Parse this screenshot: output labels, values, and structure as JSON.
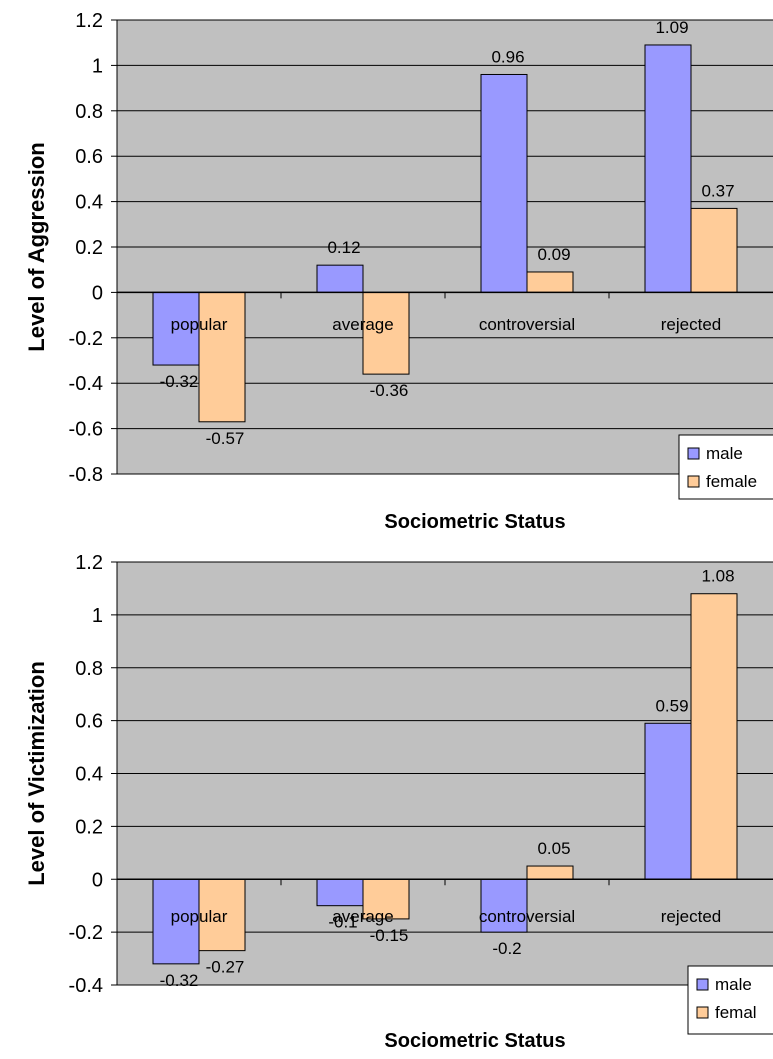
{
  "colors": {
    "plot_bg": "#C0C0C0",
    "male": "#9999FF",
    "female": "#FFCC99",
    "bar_stroke": "#000000",
    "grid": "#000000"
  },
  "chart_data": [
    {
      "type": "bar",
      "categories": [
        "popular",
        "average",
        "controversial",
        "rejected"
      ],
      "series": [
        {
          "name": "male",
          "values": [
            -0.32,
            0.12,
            0.96,
            1.09
          ],
          "labels": [
            "-0.32",
            "0.12",
            "0.96",
            "1.09"
          ]
        },
        {
          "name": "female",
          "values": [
            -0.57,
            -0.36,
            0.09,
            0.37
          ],
          "labels": [
            "-0.57",
            "-0.36",
            "0.09",
            "0.37"
          ]
        }
      ],
      "yticks": [
        "-0.8",
        "-0.6",
        "-0.4",
        "-0.2",
        "0",
        "0.2",
        "0.4",
        "0.6",
        "0.8",
        "1",
        "1.2"
      ],
      "ylim": [
        -0.8,
        1.2
      ],
      "ylabel": "Level of Aggression",
      "xlabel": "Sociometric Status",
      "grid": true,
      "legend": "bottom-right"
    },
    {
      "type": "bar",
      "categories": [
        "popular",
        "average",
        "controversial",
        "rejected"
      ],
      "series": [
        {
          "name": "male",
          "values": [
            -0.32,
            -0.1,
            -0.2,
            0.59
          ],
          "labels": [
            "-0.32",
            "-0.1",
            "-0.2",
            "0.59"
          ]
        },
        {
          "name": "female",
          "values": [
            -0.27,
            -0.15,
            0.05,
            1.08
          ],
          "labels": [
            "-0.27",
            "-0.15",
            "0.05",
            "1.08"
          ]
        }
      ],
      "yticks": [
        "-0.4",
        "-0.2",
        "0",
        "0.2",
        "0.4",
        "0.6",
        "0.8",
        "1",
        "1.2"
      ],
      "ylim": [
        -0.4,
        1.2
      ],
      "ylabel": "Level of Victimization",
      "xlabel": "Sociometric Status",
      "grid": true,
      "legend": "bottom-right",
      "legend_labels": [
        "male",
        "femal"
      ]
    }
  ]
}
